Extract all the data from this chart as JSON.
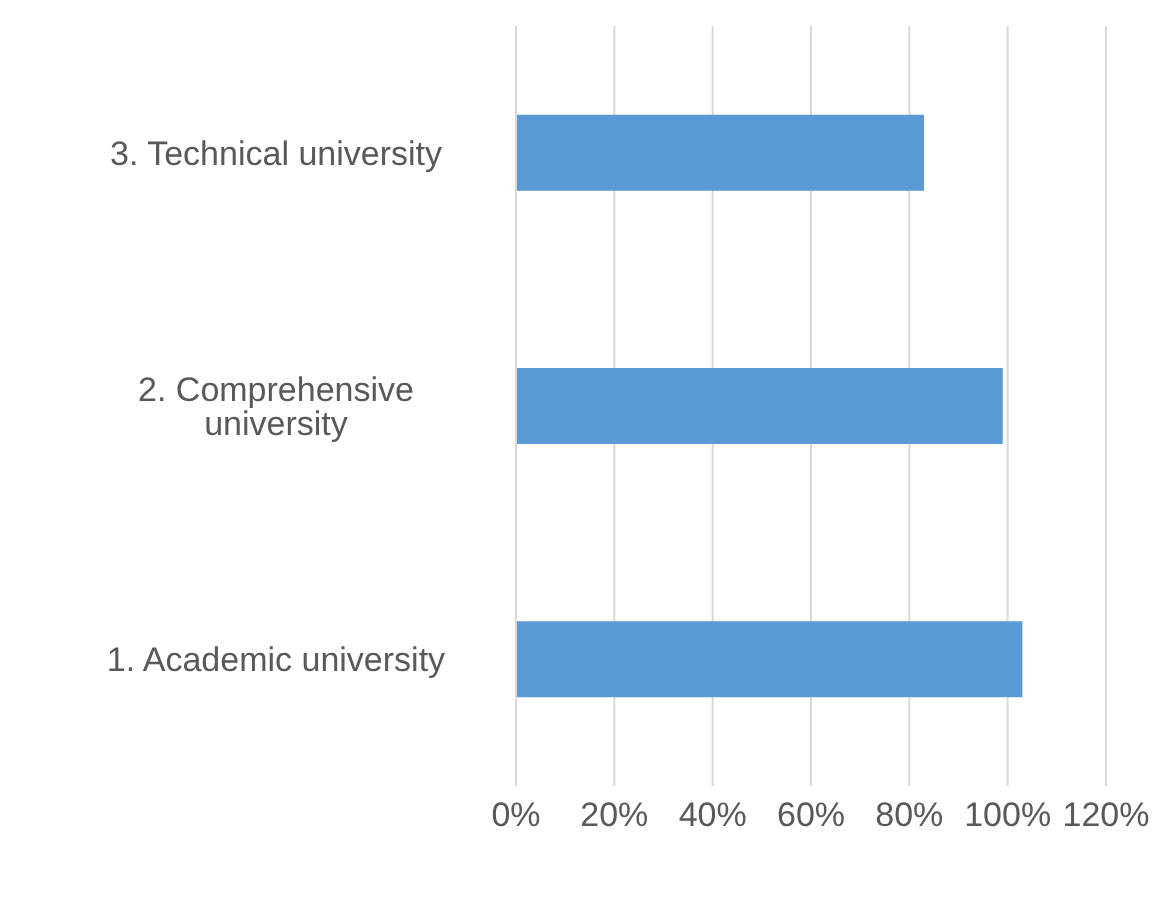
{
  "chart_data": {
    "type": "bar",
    "orientation": "horizontal",
    "categories": [
      "3. Technical university",
      "2. Comprehensive university",
      "1. Academic university"
    ],
    "values": [
      83,
      99,
      103
    ],
    "color": "#5b9bd5",
    "xlim": [
      0,
      120
    ],
    "xticks": [
      {
        "value": 0,
        "label": "0%"
      },
      {
        "value": 20,
        "label": "20%"
      },
      {
        "value": 40,
        "label": "40%"
      },
      {
        "value": 60,
        "label": "60%"
      },
      {
        "value": 80,
        "label": "80%"
      },
      {
        "value": 100,
        "label": "100%"
      },
      {
        "value": 120,
        "label": "120%"
      }
    ],
    "grid": "x",
    "legend": false
  }
}
